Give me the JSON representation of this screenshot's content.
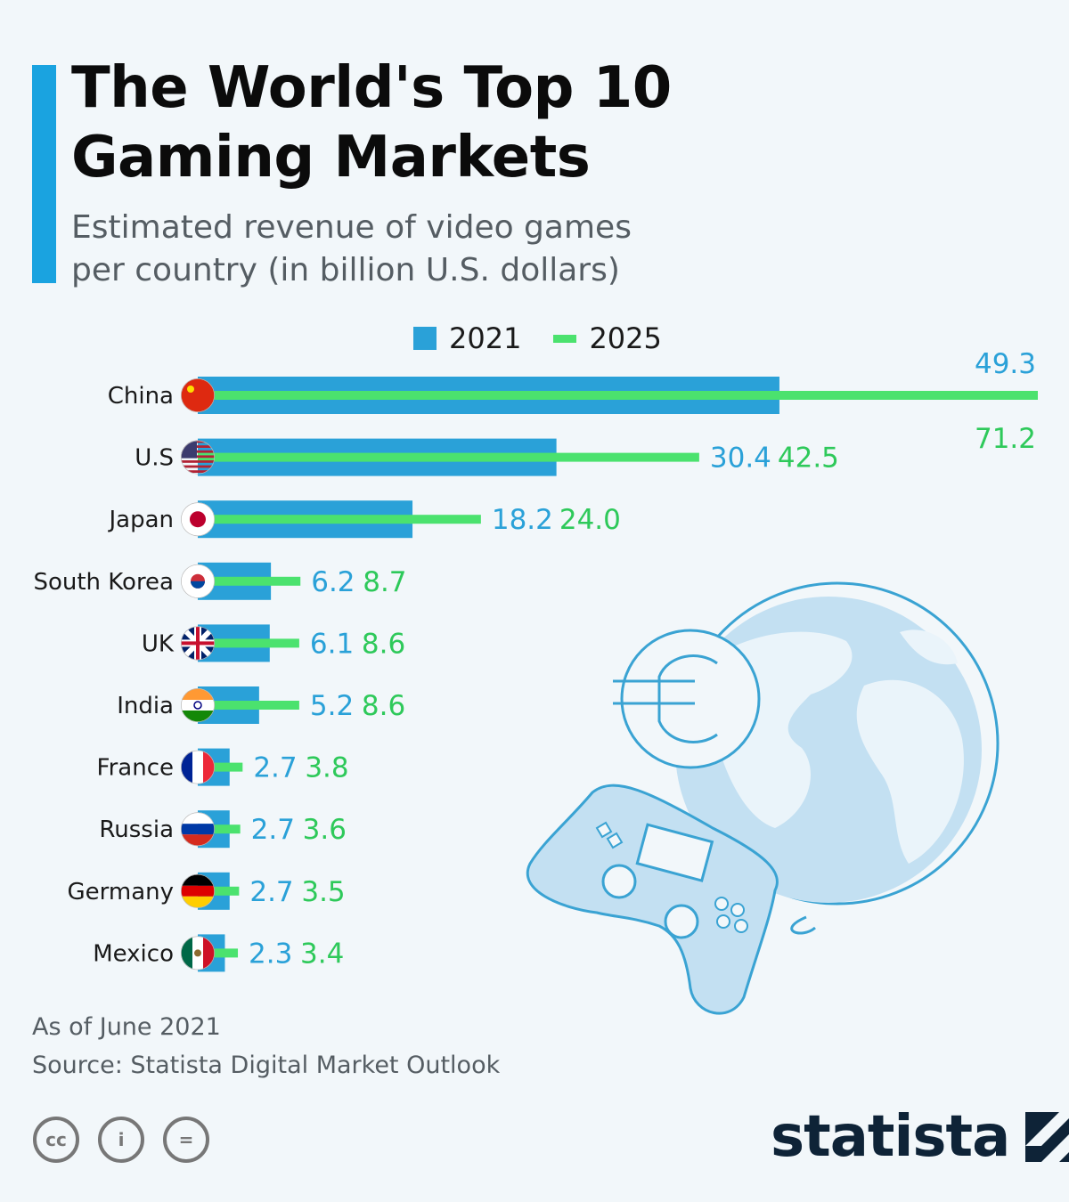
{
  "title": "The World's Top 10 Gaming Markets",
  "subtitle": "Estimated revenue of video games per country (in billion U.S. dollars)",
  "colors": {
    "y2021": "#2aa1d8",
    "y2025": "#4be26e",
    "v2025": "#2ec95a",
    "accent": "#1aa3e0"
  },
  "icons": [
    "globe-icon",
    "euro-icon",
    "gamepad-icon"
  ],
  "chart_data": {
    "type": "bar",
    "categories": [
      "China",
      "U.S",
      "Japan",
      "South Korea",
      "UK",
      "India",
      "France",
      "Russia",
      "Germany",
      "Mexico"
    ],
    "series": [
      {
        "name": "2021",
        "values": [
          49.3,
          30.4,
          18.2,
          6.2,
          6.1,
          5.2,
          2.7,
          2.7,
          2.7,
          2.3
        ]
      },
      {
        "name": "2025",
        "values": [
          71.2,
          42.5,
          24.0,
          8.7,
          8.6,
          8.6,
          3.8,
          3.6,
          3.5,
          3.4
        ]
      }
    ],
    "value_labels": {
      "2021": [
        "49.3",
        "30.4",
        "18.2",
        "6.2",
        "6.1",
        "5.2",
        "2.7",
        "2.7",
        "2.7",
        "2.3"
      ],
      "2025": [
        "71.2",
        "42.5",
        "24.0",
        "8.7",
        "8.6",
        "8.6",
        "3.8",
        "3.6",
        "3.5",
        "3.4"
      ]
    },
    "flags": [
      "china-flag-icon",
      "usa-flag-icon",
      "japan-flag-icon",
      "south-korea-flag-icon",
      "uk-flag-icon",
      "india-flag-icon",
      "france-flag-icon",
      "russia-flag-icon",
      "germany-flag-icon",
      "mexico-flag-icon"
    ],
    "legend_position": "top",
    "grid": false
  },
  "footer": {
    "note": "As of June 2021",
    "source": "Source: Statista Digital Market Outlook",
    "cc_labels": [
      "cc",
      "i",
      "="
    ]
  },
  "logo": "statista"
}
